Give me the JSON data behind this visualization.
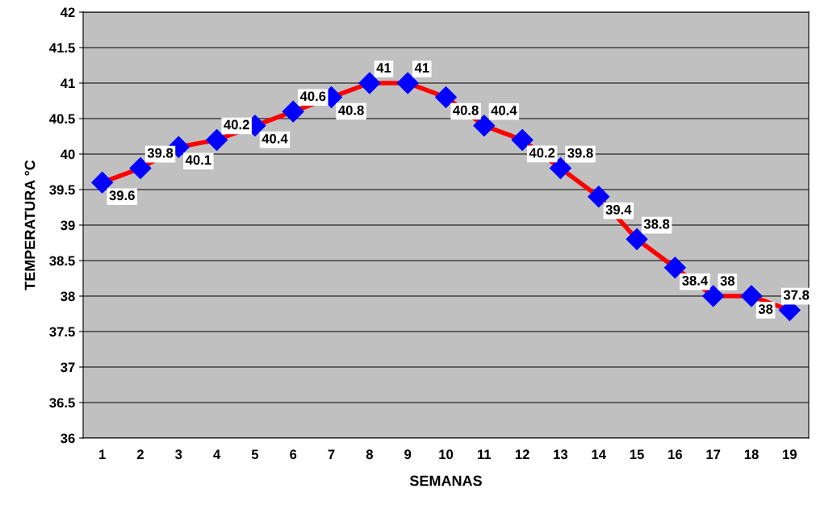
{
  "chart_data": {
    "type": "line",
    "xlabel": "SEMANAS",
    "ylabel": "TEMPERATURA °C",
    "categories": [
      "1",
      "2",
      "3",
      "4",
      "5",
      "6",
      "7",
      "8",
      "9",
      "10",
      "11",
      "12",
      "13",
      "14",
      "15",
      "16",
      "17",
      "18",
      "19"
    ],
    "series": [
      {
        "color": "#ff0000",
        "values": [
          39.6,
          39.8,
          40.1,
          40.2,
          40.4,
          40.6,
          40.8,
          41,
          41,
          40.8,
          40.4,
          40.2,
          39.8,
          39.4,
          38.8,
          38.4,
          38,
          38,
          37.8
        ]
      }
    ],
    "marker": "diamond",
    "line_style": "solid",
    "ylim": [
      36,
      42
    ],
    "yticks": [
      36,
      36.5,
      37,
      37.5,
      38,
      38.5,
      39,
      39.5,
      40,
      40.5,
      41,
      41.5,
      42
    ],
    "grid": "y",
    "data_labels": true
  }
}
